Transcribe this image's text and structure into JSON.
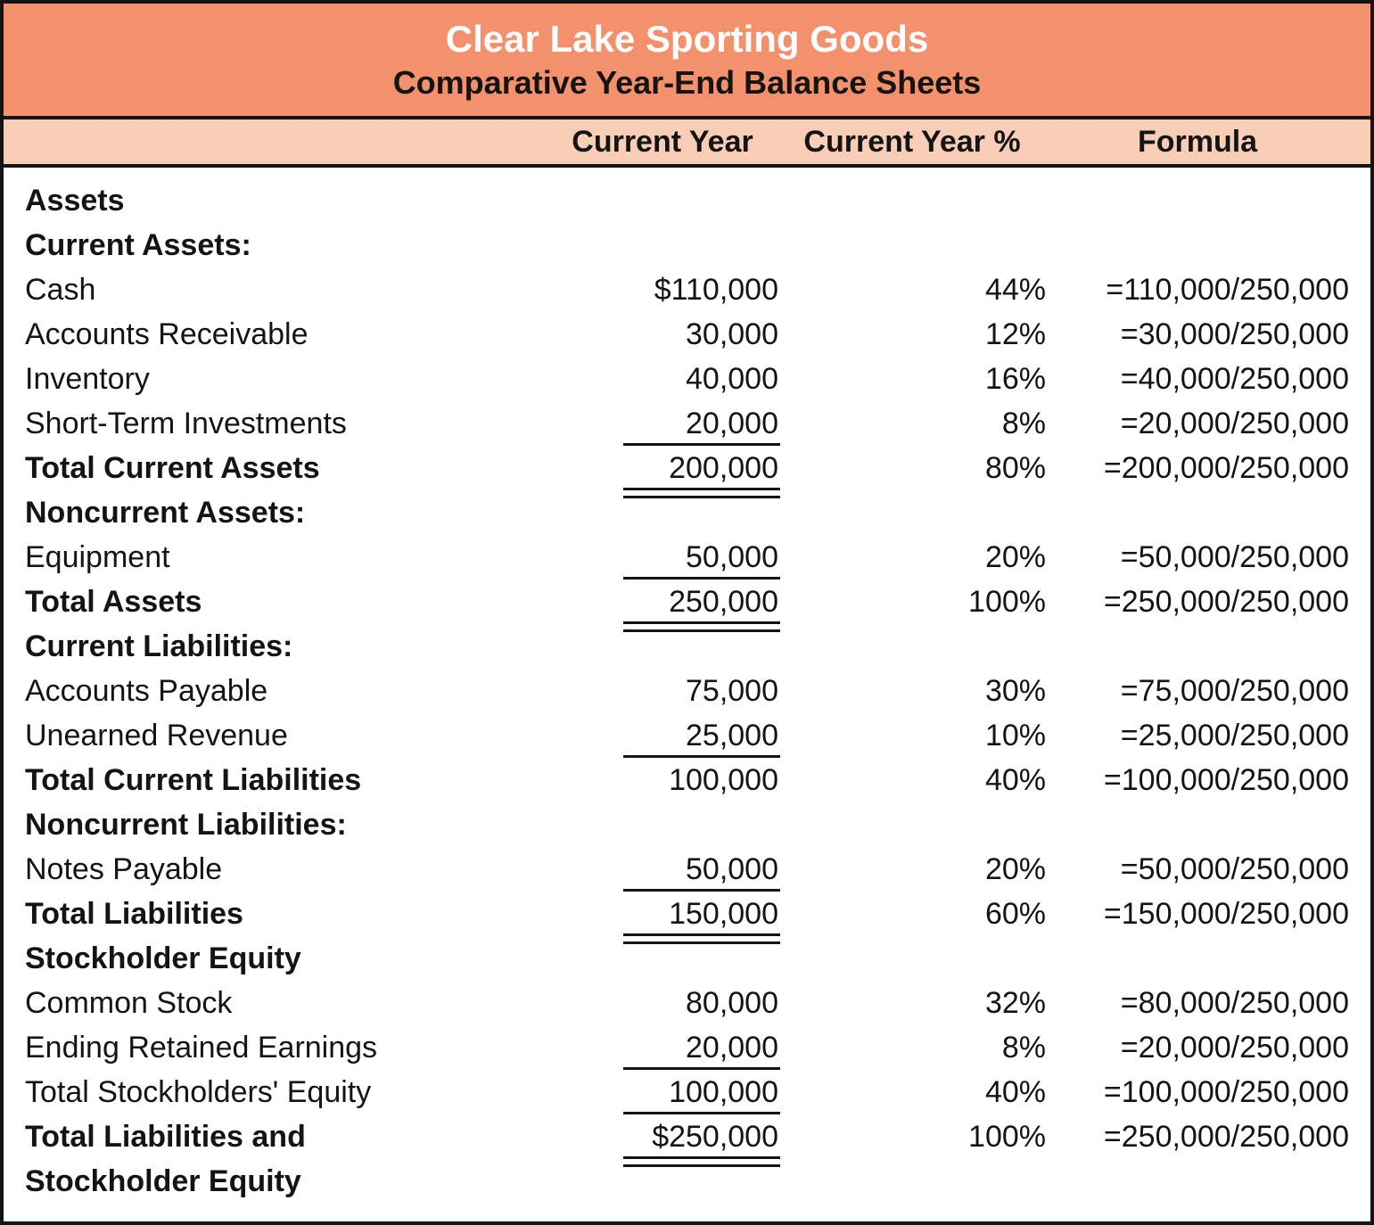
{
  "header": {
    "title": "Clear Lake Sporting Goods",
    "subtitle": "Comparative Year-End Balance Sheets"
  },
  "columns": {
    "current_year": "Current Year",
    "current_year_pct": "Current Year %",
    "formula": "Formula"
  },
  "colors": {
    "banner_background": "#F2916B",
    "column_band_background": "#F9CDB6",
    "border": "#141414",
    "title_text": "#FFFFFF",
    "body_text": "#141414"
  },
  "rows": [
    {
      "label": "Assets"
    },
    {
      "label": "Current Assets:"
    },
    {
      "label": "Cash",
      "amount": "$110,000",
      "pct": "44%",
      "formula": "=110,000/250,000"
    },
    {
      "label": "Accounts Receivable",
      "amount": "30,000",
      "pct": "12%",
      "formula": "=30,000/250,000"
    },
    {
      "label": "Inventory",
      "amount": "40,000",
      "pct": "16%",
      "formula": "=40,000/250,000"
    },
    {
      "label": "Short-Term Investments",
      "amount": "20,000",
      "pct": "8%",
      "formula": "=20,000/250,000"
    },
    {
      "label": "Total Current Assets",
      "amount": "200,000",
      "pct": "80%",
      "formula": "=200,000/250,000"
    },
    {
      "label": "Noncurrent Assets:"
    },
    {
      "label": "Equipment",
      "amount": "50,000",
      "pct": "20%",
      "formula": "=50,000/250,000"
    },
    {
      "label": "Total Assets",
      "amount": "250,000",
      "pct": "100%",
      "formula": "=250,000/250,000"
    },
    {
      "label": "Current Liabilities:"
    },
    {
      "label": "Accounts Payable",
      "amount": "75,000",
      "pct": "30%",
      "formula": "=75,000/250,000"
    },
    {
      "label": "Unearned Revenue",
      "amount": "25,000",
      "pct": "10%",
      "formula": "=25,000/250,000"
    },
    {
      "label": "Total Current Liabilities",
      "amount": "100,000",
      "pct": "40%",
      "formula": "=100,000/250,000"
    },
    {
      "label": "Noncurrent Liabilities:"
    },
    {
      "label": "Notes Payable",
      "amount": "50,000",
      "pct": "20%",
      "formula": "=50,000/250,000"
    },
    {
      "label": "Total Liabilities",
      "amount": "150,000",
      "pct": "60%",
      "formula": "=150,000/250,000"
    },
    {
      "label": "Stockholder Equity"
    },
    {
      "label": "Common Stock",
      "amount": "80,000",
      "pct": "32%",
      "formula": "=80,000/250,000"
    },
    {
      "label": "Ending Retained Earnings",
      "amount": "20,000",
      "pct": "8%",
      "formula": "=20,000/250,000"
    },
    {
      "label": "Total Stockholders' Equity",
      "amount": "100,000",
      "pct": "40%",
      "formula": "=100,000/250,000"
    },
    {
      "label": "Total Liabilities and\nStockholder Equity",
      "amount": "$250,000",
      "pct": "100%",
      "formula": "=250,000/250,000"
    }
  ]
}
